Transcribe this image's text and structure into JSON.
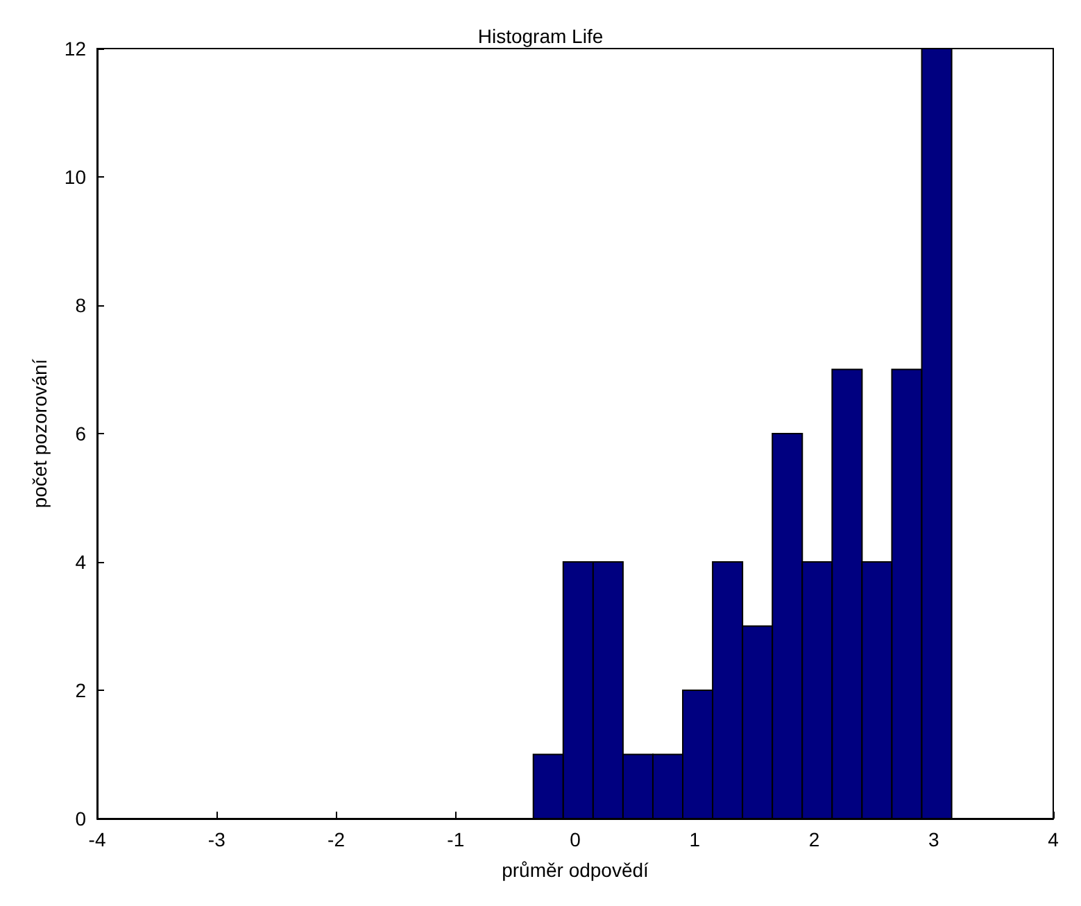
{
  "chart_data": {
    "type": "histogram",
    "title": "Histogram Life",
    "xlabel": "průměr odpovědí",
    "ylabel": "počet pozorování",
    "bins": [
      -0.35,
      -0.1,
      0.15,
      0.4,
      0.65,
      0.9,
      1.15,
      1.4,
      1.65,
      1.9,
      2.15,
      2.4,
      2.65,
      2.9,
      3.15
    ],
    "values": [
      1,
      4,
      4,
      1,
      1,
      2,
      4,
      3,
      6,
      4,
      7,
      4,
      7,
      12
    ],
    "color": "#000080",
    "xlim": [
      -4,
      4
    ],
    "xticks": [
      -4,
      -3,
      -2,
      -1,
      0,
      1,
      2,
      3,
      4
    ],
    "ylim": [
      0,
      12
    ],
    "yticks": [
      0,
      2,
      4,
      6,
      8,
      10,
      12
    ],
    "grid": false
  }
}
